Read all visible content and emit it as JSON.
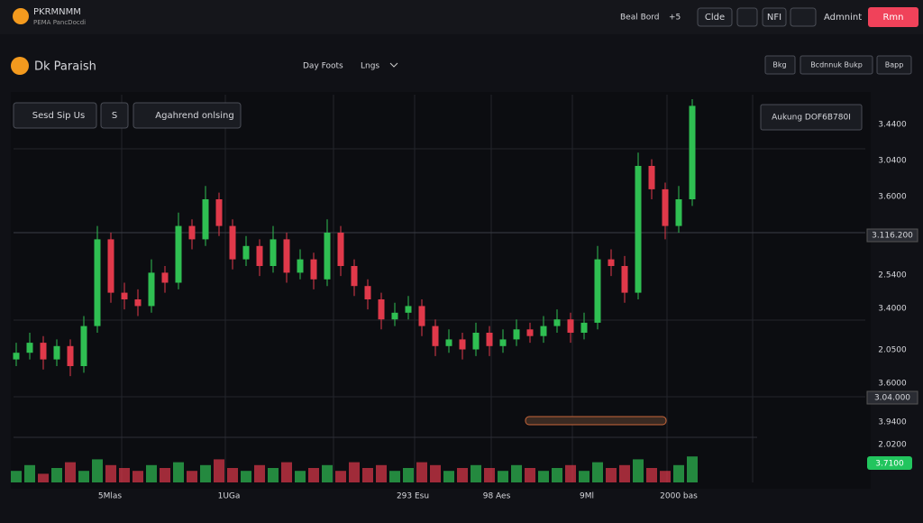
{
  "header": {
    "brand": "PKRMNMM",
    "tagline": "PEMA PancDocdi",
    "status": "Beal Bord",
    "status_delta": "+5",
    "buttons": [
      "Clde",
      "NFI",
      "Admnint"
    ],
    "primary": "Rmn"
  },
  "toolbar": {
    "title": "Dk Paraish",
    "timeframe": "Day Foots",
    "mode": "Lngs",
    "buttons": [
      "Bkg",
      "Bcdnnuk Bukp",
      "Bapp"
    ]
  },
  "chart": {
    "type": "candlestick",
    "controls": [
      "Sesd Sip Us",
      "S",
      "Agahrend onlsing"
    ],
    "price_box": "Aukung DOF6B780I",
    "y_labels": [
      "3.4400",
      "3.0400",
      "3.6000",
      "3.116.200",
      "2.5400",
      "3.4000",
      "2.0500",
      "3.6000",
      "3.04.000",
      "3.9400",
      "2.0200"
    ],
    "badge": "3.7100",
    "x_labels": [
      "5Mlas",
      "1UGa",
      "293 Esu",
      "98 Aes",
      "9Ml",
      "2000 bas"
    ],
    "up_color": "#2fbf52",
    "down_color": "#e0394a",
    "ylim": [
      0,
      100
    ],
    "candles": [
      [
        22,
        27,
        20,
        24
      ],
      [
        24,
        30,
        22,
        27
      ],
      [
        27,
        29,
        19,
        22
      ],
      [
        22,
        28,
        20,
        26
      ],
      [
        26,
        28,
        17,
        20
      ],
      [
        20,
        35,
        18,
        32
      ],
      [
        32,
        62,
        30,
        58
      ],
      [
        58,
        60,
        39,
        42
      ],
      [
        42,
        45,
        37,
        40
      ],
      [
        40,
        43,
        35,
        38
      ],
      [
        38,
        52,
        36,
        48
      ],
      [
        48,
        50,
        42,
        45
      ],
      [
        45,
        66,
        43,
        62
      ],
      [
        62,
        64,
        55,
        58
      ],
      [
        58,
        74,
        56,
        70
      ],
      [
        70,
        72,
        59,
        62
      ],
      [
        62,
        64,
        49,
        52
      ],
      [
        52,
        59,
        50,
        56
      ],
      [
        56,
        58,
        47,
        50
      ],
      [
        50,
        62,
        48,
        58
      ],
      [
        58,
        60,
        45,
        48
      ],
      [
        48,
        55,
        46,
        52
      ],
      [
        52,
        54,
        43,
        46
      ],
      [
        46,
        64,
        44,
        60
      ],
      [
        60,
        62,
        47,
        50
      ],
      [
        50,
        52,
        41,
        44
      ],
      [
        44,
        46,
        37,
        40
      ],
      [
        40,
        42,
        31,
        34
      ],
      [
        34,
        39,
        32,
        36
      ],
      [
        36,
        41,
        34,
        38
      ],
      [
        38,
        40,
        29,
        32
      ],
      [
        32,
        34,
        23,
        26
      ],
      [
        26,
        31,
        24,
        28
      ],
      [
        28,
        30,
        22,
        25
      ],
      [
        25,
        33,
        23,
        30
      ],
      [
        30,
        32,
        23,
        26
      ],
      [
        26,
        31,
        24,
        28
      ],
      [
        28,
        34,
        26,
        31
      ],
      [
        31,
        33,
        27,
        29
      ],
      [
        29,
        35,
        27,
        32
      ],
      [
        32,
        37,
        30,
        34
      ],
      [
        34,
        36,
        27,
        30
      ],
      [
        30,
        36,
        28,
        33
      ],
      [
        33,
        56,
        31,
        52
      ],
      [
        52,
        55,
        47,
        50
      ],
      [
        50,
        53,
        39,
        42
      ],
      [
        42,
        84,
        40,
        80
      ],
      [
        80,
        82,
        70,
        73
      ],
      [
        73,
        75,
        58,
        62
      ],
      [
        62,
        74,
        60,
        70
      ],
      [
        70,
        100,
        68,
        98
      ]
    ],
    "volume_lim": [
      0,
      10
    ],
    "volumes": [
      4,
      6,
      3,
      5,
      7,
      4,
      8,
      6,
      5,
      4,
      6,
      5,
      7,
      4,
      6,
      8,
      5,
      4,
      6,
      5,
      7,
      4,
      5,
      6,
      4,
      7,
      5,
      6,
      4,
      5,
      7,
      6,
      4,
      5,
      6,
      5,
      4,
      6,
      5,
      4,
      5,
      6,
      4,
      7,
      5,
      6,
      8,
      5,
      4,
      6,
      9
    ]
  }
}
